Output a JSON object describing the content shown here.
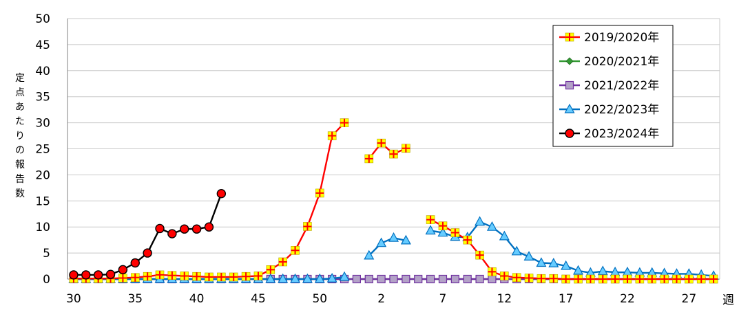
{
  "chart_data": {
    "type": "line",
    "ylabel": "定点あたりの報告数",
    "xunit": "週",
    "ylim": [
      0,
      50
    ],
    "yticks": [
      0,
      5,
      10,
      15,
      20,
      25,
      30,
      35,
      40,
      45,
      50
    ],
    "xticks": [
      "30",
      "35",
      "40",
      "45",
      "50",
      "2",
      "7",
      "12",
      "17",
      "22",
      "27"
    ],
    "weeks": [
      30,
      31,
      32,
      33,
      34,
      35,
      36,
      37,
      38,
      39,
      40,
      41,
      42,
      43,
      44,
      45,
      46,
      47,
      48,
      49,
      50,
      51,
      52,
      53,
      1,
      2,
      3,
      4,
      5,
      6,
      7,
      8,
      9,
      10,
      11,
      12,
      13,
      14,
      15,
      16,
      17,
      18,
      19,
      20,
      21,
      22,
      23,
      24,
      25,
      26,
      27,
      28,
      29
    ],
    "grid": true,
    "legend_position": "top-right",
    "series": [
      {
        "name": "2019/2020年",
        "color": "#ff0000",
        "marker": "plus-square",
        "marker_color": "#ffff00",
        "values": [
          0.1,
          0.1,
          0.1,
          0.1,
          0.2,
          0.3,
          0.5,
          0.8,
          0.7,
          0.6,
          0.5,
          0.4,
          0.4,
          0.4,
          0.5,
          0.6,
          1.8,
          3.3,
          5.5,
          10.1,
          16.5,
          27.5,
          30.0,
          null,
          23.1,
          26.1,
          24.0,
          25.1,
          null,
          11.4,
          10.2,
          8.9,
          7.5,
          4.6,
          1.4,
          0.6,
          0.3,
          0.2,
          0.1,
          0.1,
          0.0,
          0.0,
          0.0,
          0.0,
          0.0,
          0.0,
          0.0,
          0.0,
          0.0,
          0.0,
          0.0,
          0.0,
          0.0
        ]
      },
      {
        "name": "2020/2021年",
        "color": "#339933",
        "marker": "diamond",
        "marker_color": "#339933",
        "values": [
          0,
          0,
          0,
          0,
          0,
          0,
          0,
          0,
          0,
          0,
          0,
          0,
          0,
          0,
          0,
          0,
          0,
          0,
          0,
          0,
          0,
          0,
          0,
          0,
          0,
          0,
          0,
          0,
          0,
          0,
          0,
          0,
          0,
          0,
          0,
          0,
          0,
          0,
          0,
          0,
          0,
          0,
          0,
          0,
          0,
          0,
          0,
          0,
          0,
          0,
          0,
          0,
          0
        ]
      },
      {
        "name": "2021/2022年",
        "color": "#7030a0",
        "marker": "square",
        "marker_color": "#b3a2c7",
        "values": [
          0,
          0,
          0,
          0,
          0,
          0,
          0,
          0,
          0,
          0,
          0,
          0,
          0,
          0,
          0,
          0,
          0,
          0,
          0,
          0,
          0,
          0,
          0,
          0,
          0,
          0,
          0,
          0,
          0,
          0,
          0,
          0,
          0,
          0,
          0,
          0,
          0,
          0,
          0,
          0,
          0,
          0,
          0,
          0,
          0,
          0,
          0,
          0,
          0,
          0,
          0,
          0,
          0
        ]
      },
      {
        "name": "2022/2023年",
        "color": "#0070c0",
        "marker": "triangle",
        "marker_color": "#66ccff",
        "values": [
          0.0,
          0.0,
          0.0,
          0.0,
          0.0,
          0.0,
          0.0,
          0.0,
          0.0,
          0.0,
          0.0,
          0.0,
          0.0,
          0.0,
          0.0,
          0.0,
          0.0,
          0.0,
          0.0,
          0.0,
          0.0,
          0.1,
          0.4,
          null,
          4.5,
          6.9,
          7.9,
          7.4,
          null,
          9.3,
          8.9,
          8.1,
          8.0,
          11.0,
          10.0,
          8.2,
          5.3,
          4.3,
          3.1,
          3.0,
          2.5,
          1.6,
          1.2,
          1.5,
          1.3,
          1.3,
          1.2,
          1.2,
          1.1,
          1.0,
          1.0,
          0.8,
          0.6
        ]
      },
      {
        "name": "2023/2024年",
        "color": "#000000",
        "marker": "circle",
        "marker_color": "#ff0000",
        "values": [
          0.8,
          0.8,
          0.8,
          0.9,
          1.8,
          3.1,
          5.0,
          9.7,
          8.7,
          9.6,
          9.6,
          10.0,
          16.4
        ]
      }
    ]
  }
}
